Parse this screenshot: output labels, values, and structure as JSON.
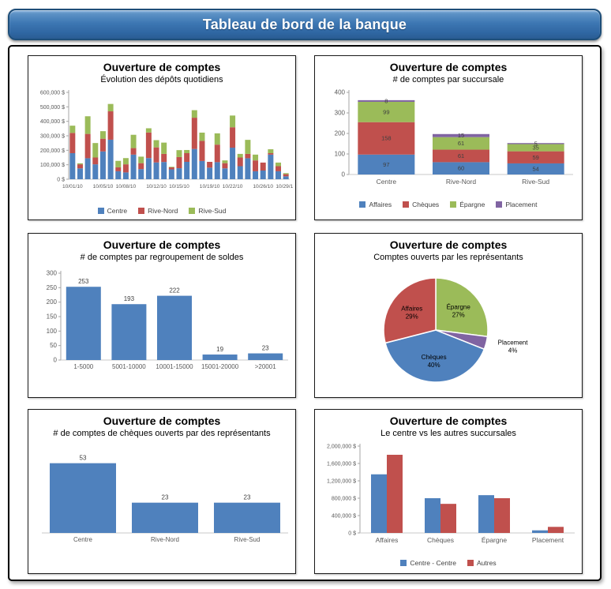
{
  "header": {
    "title": "Tableau de bord de la banque"
  },
  "colors": {
    "blue": "#4F81BD",
    "red": "#C0504D",
    "green": "#9BBB59",
    "purple": "#8064A2",
    "axis_text": "#595959",
    "axis_line": "#A6A6A6",
    "data_label": "#3f3f3f"
  },
  "chart_data": [
    {
      "type": "stacked-bar",
      "title": "Ouverture de comptes",
      "subtitle": "Évolution des dépôts quotidiens",
      "ylim": [
        0,
        600000
      ],
      "y_tick_labels": [
        "0 $",
        "100,000 $",
        "200,000 $",
        "300,000 $",
        "400,000 $",
        "500,000 $",
        "600,000 $"
      ],
      "x_tick_labels": [
        "10/01/10",
        "10/05/10",
        "10/08/10",
        "10/12/10",
        "10/15/10",
        "10/19/10",
        "10/22/10",
        "10/26/10",
        "10/29/10"
      ],
      "x_tick_positions": [
        0,
        4,
        7,
        11,
        14,
        18,
        21,
        25,
        28
      ],
      "legend": [
        "Centre",
        "Rive-Nord",
        "Rive-Sud"
      ],
      "series": [
        {
          "name": "Centre",
          "color": "#4F81BD",
          "values": [
            180000,
            75000,
            145000,
            103000,
            192000,
            273000,
            55000,
            47000,
            170000,
            70000,
            146000,
            116000,
            119000,
            68000,
            76000,
            120000,
            209000,
            126000,
            80000,
            118000,
            75000,
            218000,
            90000,
            145000,
            55000,
            60000,
            170000,
            55000,
            20000
          ]
        },
        {
          "name": "Rive-Nord",
          "color": "#C0504D",
          "values": [
            140000,
            28000,
            168000,
            47000,
            88000,
            196000,
            27000,
            56000,
            45000,
            41000,
            177000,
            104000,
            56000,
            14000,
            77000,
            60000,
            216000,
            139000,
            40000,
            121000,
            36000,
            141000,
            60000,
            30000,
            75000,
            55000,
            10000,
            35000,
            15000
          ]
        },
        {
          "name": "Rive-Sud",
          "color": "#9BBB59",
          "values": [
            50000,
            7000,
            122000,
            100000,
            52000,
            51000,
            45000,
            43000,
            92000,
            45000,
            29000,
            50000,
            78000,
            4000,
            48000,
            22000,
            52000,
            57000,
            0,
            78000,
            19000,
            81000,
            25000,
            97000,
            40000,
            0,
            27000,
            25000,
            7000
          ]
        }
      ]
    },
    {
      "type": "stacked-bar",
      "title": "Ouverture de comptes",
      "subtitle": "# de comptes par succursale",
      "ylim": [
        0,
        400
      ],
      "y_tick_labels": [
        "0",
        "100",
        "200",
        "300",
        "400"
      ],
      "categories": [
        "Centre",
        "Rive-Nord",
        "Rive-Sud"
      ],
      "segment_labels": true,
      "legend": [
        "Affaires",
        "Chèques",
        "Épargne",
        "Placement"
      ],
      "series": [
        {
          "name": "Affaires",
          "color": "#4F81BD",
          "values": [
            97,
            60,
            54
          ]
        },
        {
          "name": "Chèques",
          "color": "#C0504D",
          "values": [
            158,
            61,
            59
          ]
        },
        {
          "name": "Épargne",
          "color": "#9BBB59",
          "values": [
            99,
            61,
            35
          ]
        },
        {
          "name": "Placement",
          "color": "#8064A2",
          "values": [
            8,
            15,
            5
          ]
        }
      ]
    },
    {
      "type": "bar",
      "title": "Ouverture de comptes",
      "subtitle": "# de comptes par regroupement de soldes",
      "ylim": [
        0,
        300
      ],
      "y_tick_labels": [
        "0",
        "50",
        "100",
        "150",
        "200",
        "250",
        "300"
      ],
      "categories": [
        "1-5000",
        "5001-10000",
        "10001-15000",
        "15001-20000",
        ">20001"
      ],
      "values": [
        253,
        193,
        222,
        19,
        23
      ],
      "bar_color": "#4F81BD",
      "data_labels": true
    },
    {
      "type": "pie",
      "title": "Ouverture de comptes",
      "subtitle": "Comptes ouverts par les représentants",
      "slices": [
        {
          "name": "Épargne",
          "pct": 27,
          "color": "#9BBB59"
        },
        {
          "name": "Placement",
          "pct": 4,
          "color": "#8064A2",
          "label_outside": true
        },
        {
          "name": "Chèques",
          "pct": 40,
          "color": "#4F81BD"
        },
        {
          "name": "Affaires",
          "pct": 29,
          "color": "#C0504D"
        }
      ]
    },
    {
      "type": "bar",
      "title": "Ouverture de comptes",
      "subtitle": "# de comptes de chèques ouverts par des représentants",
      "ylim": [
        0,
        60
      ],
      "y_tick_labels": [],
      "hide_y_axis": true,
      "categories": [
        "Centre",
        "Rive-Nord",
        "Rive-Sud"
      ],
      "values": [
        53,
        23,
        23
      ],
      "bar_color": "#4F81BD",
      "data_labels": true
    },
    {
      "type": "grouped-bar",
      "title": "Ouverture de comptes",
      "subtitle": "Le centre vs les autres succursales",
      "ylim": [
        0,
        2000000
      ],
      "y_tick_labels": [
        "0 $",
        "400,000 $",
        "800,000 $",
        "1,200,000 $",
        "1,600,000 $",
        "2,000,000 $"
      ],
      "categories": [
        "Affaires",
        "Chèques",
        "Épargne",
        "Placement"
      ],
      "legend": [
        "Centre - Centre",
        "Autres"
      ],
      "series": [
        {
          "name": "Centre - Centre",
          "color": "#4F81BD",
          "values": [
            1350000,
            800000,
            870000,
            60000
          ]
        },
        {
          "name": "Autres",
          "color": "#C0504D",
          "values": [
            1800000,
            670000,
            800000,
            140000
          ]
        }
      ]
    }
  ]
}
